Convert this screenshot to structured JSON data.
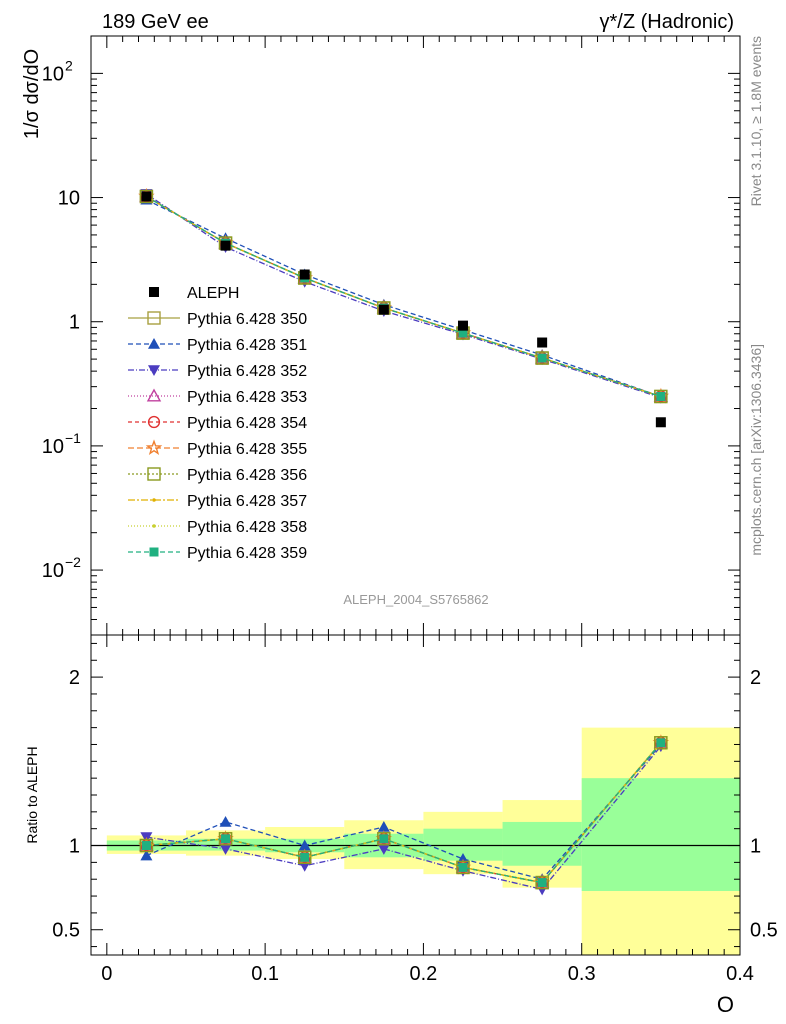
{
  "header": {
    "left": "189 GeV ee",
    "right": "γ*/Z (Hadronic)"
  },
  "side_labels": {
    "rivet": "Rivet 3.1.10, ≥ 1.8M events",
    "mcplots": "mcplots.cern.ch [arXiv:1306.3436]"
  },
  "analysis_label": "ALEPH_2004_S5765862",
  "chart_data": [
    {
      "type": "scatter",
      "panel": "main",
      "ylabel": "1/σ  dσ/dO",
      "yscale": "log",
      "ylim": [
        0.003,
        200
      ],
      "xlim": [
        -0.01,
        0.4
      ],
      "y_ticks": [
        {
          "v": 100,
          "label": "10",
          "sup": "2"
        },
        {
          "v": 10,
          "label": "10",
          "sup": ""
        },
        {
          "v": 1,
          "label": "1",
          "sup": ""
        },
        {
          "v": 0.1,
          "label": "10",
          "sup": "−1"
        },
        {
          "v": 0.01,
          "label": "10",
          "sup": "−2"
        }
      ],
      "legend_position": "left-middle",
      "data": {
        "name": "ALEPH",
        "x": [
          0.025,
          0.075,
          0.125,
          0.175,
          0.225,
          0.275,
          0.35
        ],
        "y": [
          10.2,
          4.1,
          2.4,
          1.25,
          0.93,
          0.68,
          0.155
        ]
      },
      "series": [
        {
          "name": "Pythia 6.428 350",
          "color": "#a8a040",
          "dash": "",
          "marker": "open-square",
          "y": [
            10.2,
            4.3,
            2.25,
            1.29,
            0.81,
            0.51,
            0.25
          ]
        },
        {
          "name": "Pythia 6.428 351",
          "color": "#1f4fb8",
          "dash": "5,3",
          "marker": "filled-triangle-up",
          "y": [
            9.6,
            4.7,
            2.4,
            1.37,
            0.86,
            0.54,
            0.25
          ]
        },
        {
          "name": "Pythia 6.428 352",
          "color": "#4b3cc0",
          "dash": "6,2,1,2",
          "marker": "filled-triangle-down",
          "y": [
            10.7,
            4.0,
            2.1,
            1.22,
            0.79,
            0.5,
            0.245
          ]
        },
        {
          "name": "Pythia 6.428 353",
          "color": "#c0409f",
          "dash": "1,2",
          "marker": "open-triangle-up",
          "y": [
            10.2,
            4.3,
            2.25,
            1.29,
            0.81,
            0.51,
            0.25
          ]
        },
        {
          "name": "Pythia 6.428 354",
          "color": "#e03030",
          "dash": "4,3",
          "marker": "open-circle",
          "y": [
            10.2,
            4.3,
            2.25,
            1.29,
            0.81,
            0.51,
            0.25
          ]
        },
        {
          "name": "Pythia 6.428 355",
          "color": "#f08030",
          "dash": "6,3",
          "marker": "open-star",
          "y": [
            10.2,
            4.3,
            2.25,
            1.29,
            0.81,
            0.51,
            0.25
          ]
        },
        {
          "name": "Pythia 6.428 356",
          "color": "#8a9a20",
          "dash": "2,2",
          "marker": "open-square",
          "y": [
            10.2,
            4.3,
            2.25,
            1.29,
            0.81,
            0.51,
            0.25
          ]
        },
        {
          "name": "Pythia 6.428 357",
          "color": "#e0b000",
          "dash": "7,2,2,2",
          "marker": "small-dot",
          "y": [
            10.2,
            4.3,
            2.25,
            1.29,
            0.81,
            0.51,
            0.25
          ]
        },
        {
          "name": "Pythia 6.428 358",
          "color": "#c8d030",
          "dash": "1,2",
          "marker": "small-dot",
          "y": [
            10.2,
            4.3,
            2.25,
            1.29,
            0.81,
            0.51,
            0.25
          ]
        },
        {
          "name": "Pythia 6.428 359",
          "color": "#20b080",
          "dash": "5,3",
          "marker": "filled-square",
          "y": [
            10.2,
            4.3,
            2.25,
            1.29,
            0.81,
            0.51,
            0.25
          ]
        }
      ]
    },
    {
      "type": "line",
      "panel": "ratio",
      "ylabel": "Ratio to ALEPH",
      "xlabel": "O",
      "ylim": [
        0.35,
        2.25
      ],
      "xlim": [
        -0.01,
        0.4
      ],
      "x_ticks": [
        {
          "v": 0,
          "label": "0"
        },
        {
          "v": 0.1,
          "label": "0.1"
        },
        {
          "v": 0.2,
          "label": "0.2"
        },
        {
          "v": 0.3,
          "label": "0.3"
        },
        {
          "v": 0.4,
          "label": "0.4"
        }
      ],
      "y_ticks": [
        {
          "v": 0.5,
          "label": "0.5"
        },
        {
          "v": 1,
          "label": "1"
        },
        {
          "v": 2,
          "label": "2"
        }
      ],
      "reference": 1,
      "bins": [
        {
          "lo": 0.0,
          "hi": 0.05,
          "inner": [
            0.97,
            1.03
          ],
          "outer": [
            0.95,
            1.06
          ]
        },
        {
          "lo": 0.05,
          "hi": 0.1,
          "inner": [
            0.97,
            1.04
          ],
          "outer": [
            0.94,
            1.09
          ]
        },
        {
          "lo": 0.1,
          "hi": 0.15,
          "inner": [
            0.96,
            1.04
          ],
          "outer": [
            0.92,
            1.11
          ]
        },
        {
          "lo": 0.15,
          "hi": 0.2,
          "inner": [
            0.93,
            1.07
          ],
          "outer": [
            0.86,
            1.15
          ]
        },
        {
          "lo": 0.2,
          "hi": 0.25,
          "inner": [
            0.91,
            1.1
          ],
          "outer": [
            0.83,
            1.2
          ]
        },
        {
          "lo": 0.25,
          "hi": 0.3,
          "inner": [
            0.88,
            1.14
          ],
          "outer": [
            0.75,
            1.27
          ]
        },
        {
          "lo": 0.3,
          "hi": 0.4,
          "inner": [
            0.73,
            1.4
          ],
          "outer": [
            0.35,
            1.7
          ]
        }
      ],
      "x": [
        0.025,
        0.075,
        0.125,
        0.175,
        0.225,
        0.275,
        0.35
      ],
      "series": [
        {
          "name": "Pythia 6.428 350",
          "y": [
            1.0,
            1.04,
            0.93,
            1.04,
            0.87,
            0.78,
            1.61
          ]
        },
        {
          "name": "Pythia 6.428 351",
          "y": [
            0.94,
            1.14,
            1.0,
            1.11,
            0.92,
            0.8,
            1.6
          ]
        },
        {
          "name": "Pythia 6.428 352",
          "y": [
            1.05,
            0.98,
            0.88,
            0.98,
            0.85,
            0.74,
            1.59
          ]
        },
        {
          "name": "Pythia 6.428 353",
          "y": [
            1.0,
            1.04,
            0.93,
            1.04,
            0.87,
            0.78,
            1.61
          ]
        },
        {
          "name": "Pythia 6.428 354",
          "y": [
            1.0,
            1.04,
            0.93,
            1.04,
            0.87,
            0.78,
            1.61
          ]
        },
        {
          "name": "Pythia 6.428 355",
          "y": [
            1.0,
            1.04,
            0.93,
            1.04,
            0.87,
            0.78,
            1.61
          ]
        },
        {
          "name": "Pythia 6.428 356",
          "y": [
            1.0,
            1.04,
            0.93,
            1.04,
            0.87,
            0.78,
            1.61
          ]
        },
        {
          "name": "Pythia 6.428 357",
          "y": [
            1.0,
            1.04,
            0.93,
            1.04,
            0.87,
            0.78,
            1.61
          ]
        },
        {
          "name": "Pythia 6.428 358",
          "y": [
            1.0,
            1.04,
            0.93,
            1.04,
            0.87,
            0.78,
            1.61
          ]
        },
        {
          "name": "Pythia 6.428 359",
          "y": [
            1.0,
            1.04,
            0.93,
            1.04,
            0.87,
            0.78,
            1.61
          ]
        }
      ]
    }
  ],
  "colors": {
    "band_inner": "#99ff99",
    "band_outer": "#ffff99",
    "data_marker": "#000000"
  }
}
